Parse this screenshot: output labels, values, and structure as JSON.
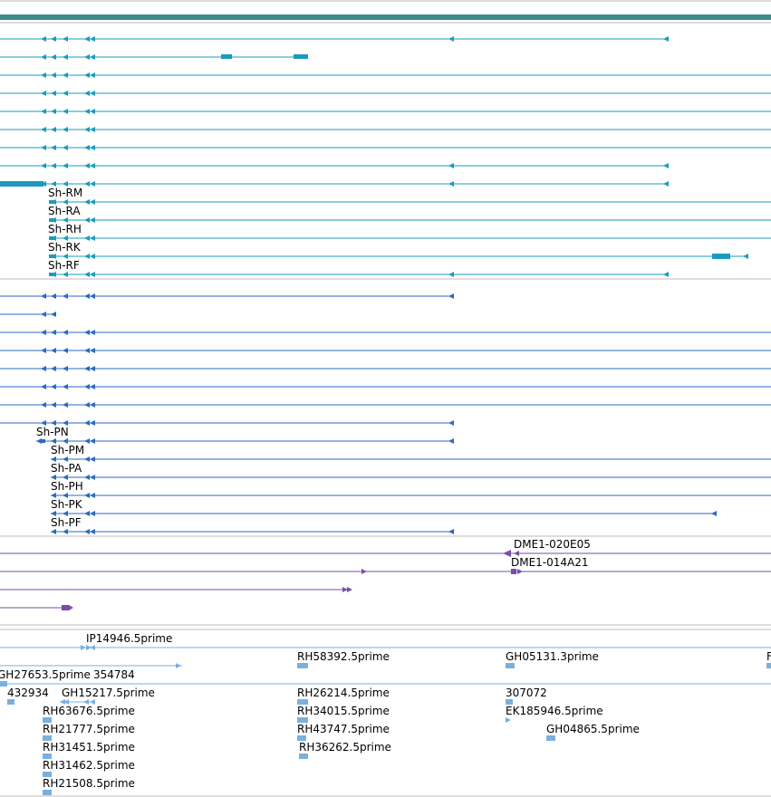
{
  "colors": {
    "background": "#ffffff",
    "separator": "#bbbbbb",
    "gene_bar": "#3c8c8c",
    "mrna": "#1a9bbd",
    "protein": "#2a6ac0",
    "cdna": "#7a4ea8",
    "est": "#7ab0de",
    "text": "#000000"
  },
  "tracks": {
    "gene": {
      "name": "gene-track"
    },
    "transcripts": {
      "labels": [
        "Sh-RM",
        "Sh-RA",
        "Sh-RH",
        "Sh-RK",
        "Sh-RF"
      ]
    },
    "proteins": {
      "labels": [
        "Sh-PN",
        "Sh-PM",
        "Sh-PA",
        "Sh-PH",
        "Sh-PK",
        "Sh-PF"
      ]
    },
    "cdna_clones": {
      "labels": [
        "DME1-020E05",
        "DME1-014A21"
      ]
    },
    "ests": {
      "labels": [
        "IP14946.5prime",
        "RH58392.5prime",
        "GH05131.3prime",
        "F",
        "GH27653.5prime",
        "354784",
        "432934",
        "GH15217.5prime",
        "RH26214.5prime",
        "307072",
        "RH63676.5prime",
        "RH34015.5prime",
        "EK185946.5prime",
        "RH21777.5prime",
        "RH43747.5prime",
        "GH04865.5prime",
        "RH31451.5prime",
        "RH36262.5prime",
        "RH31462.5prime",
        "RH21508.5prime"
      ]
    }
  }
}
